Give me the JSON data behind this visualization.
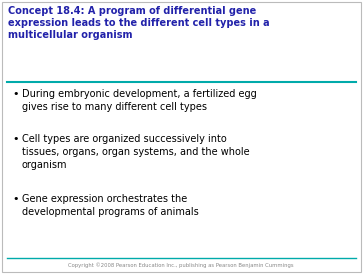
{
  "title_lines": [
    "Concept 18.4: A program of differential gene",
    "expression leads to the different cell types in a",
    "multicellular organism"
  ],
  "title_color": "#2222aa",
  "bullet_points": [
    "During embryonic development, a fertilized egg\ngives rise to many different cell types",
    "Cell types are organized successively into\ntissues, organs, organ systems, and the whole\norganism",
    "Gene expression orchestrates the\ndevelopmental programs of animals"
  ],
  "bullet_color": "#000000",
  "background_color": "#ffffff",
  "line_color": "#00aaaa",
  "footer_text": "Copyright ©2008 Pearson Education Inc., publishing as Pearson Benjamin Cummings",
  "footer_color": "#888888",
  "border_color": "#bbbbbb"
}
